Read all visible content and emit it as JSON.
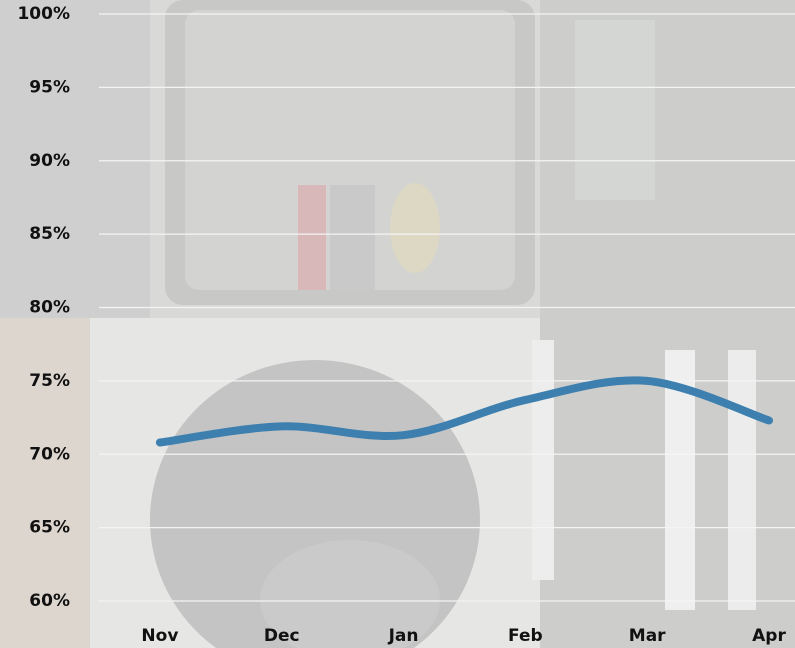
{
  "chart_data": {
    "type": "line",
    "categories": [
      "Nov",
      "Dec",
      "Jan",
      "Feb",
      "Mar",
      "Apr"
    ],
    "series": [
      {
        "color": "#3d7fae",
        "values": [
          70.8,
          71.9,
          71.3,
          73.7,
          75.0,
          72.3
        ]
      }
    ],
    "ylim": [
      60,
      100
    ],
    "yticks": [
      {
        "value": 60,
        "label": "60%"
      },
      {
        "value": 65,
        "label": "65%"
      },
      {
        "value": 70,
        "label": "70%"
      },
      {
        "value": 75,
        "label": "75%"
      },
      {
        "value": 80,
        "label": "80%"
      },
      {
        "value": 85,
        "label": "85%"
      },
      {
        "value": 90,
        "label": "90%"
      },
      {
        "value": 95,
        "label": "95%"
      },
      {
        "value": 100,
        "label": "100%"
      }
    ],
    "grid": true
  }
}
